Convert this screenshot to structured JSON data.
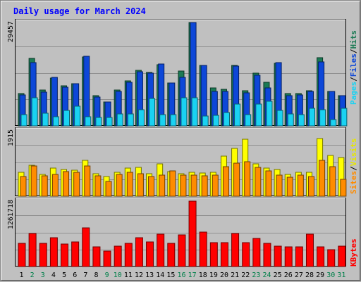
{
  "title": "Daily usage for March 2024",
  "chart_data": [
    {
      "type": "bar",
      "name": "hits-files-pages",
      "categories": [
        "1",
        "2",
        "3",
        "4",
        "5",
        "6",
        "7",
        "8",
        "9",
        "10",
        "11",
        "12",
        "13",
        "14",
        "15",
        "16",
        "17",
        "18",
        "19",
        "20",
        "21",
        "22",
        "23",
        "24",
        "25",
        "26",
        "27",
        "28",
        "29",
        "30",
        "31"
      ],
      "ymax_label": "29457",
      "ylim": [
        0,
        29457
      ],
      "series": [
        {
          "name": "Hits",
          "color": "#1b7a54",
          "values": [
            9240,
            19300,
            10160,
            13580,
            11400,
            12050,
            19680,
            8560,
            6900,
            10160,
            12800,
            15800,
            15200,
            17500,
            12300,
            15600,
            29457,
            17300,
            10800,
            10400,
            17300,
            10100,
            15100,
            12400,
            17800,
            9300,
            9300,
            10010,
            19400,
            9900,
            8700
          ]
        },
        {
          "name": "Files",
          "color": "#0d47d8",
          "values": [
            8900,
            18000,
            9600,
            13900,
            11000,
            12000,
            19900,
            8300,
            6800,
            9840,
            12400,
            15400,
            15000,
            17700,
            12200,
            13900,
            29457,
            17300,
            9900,
            9900,
            17100,
            9500,
            14400,
            10800,
            18000,
            8700,
            8800,
            9800,
            18300,
            9900,
            8600
          ]
        },
        {
          "name": "Pages",
          "color": "#1ad2f2",
          "values": [
            3200,
            8100,
            3600,
            2600,
            4400,
            5700,
            2700,
            2400,
            2400,
            3500,
            3500,
            4600,
            7800,
            3300,
            3200,
            8000,
            8000,
            2800,
            3000,
            3800,
            6300,
            3200,
            6200,
            7000,
            4400,
            3400,
            3200,
            5000,
            4700,
            1800,
            5100
          ]
        }
      ]
    },
    {
      "type": "bar",
      "name": "visits-sites",
      "categories": [
        "1",
        "2",
        "3",
        "4",
        "5",
        "6",
        "7",
        "8",
        "9",
        "10",
        "11",
        "12",
        "13",
        "14",
        "15",
        "16",
        "17",
        "18",
        "19",
        "20",
        "21",
        "22",
        "23",
        "24",
        "25",
        "26",
        "27",
        "28",
        "29",
        "30",
        "31"
      ],
      "ymax_label": "1915",
      "ylim": [
        0,
        1915
      ],
      "series": [
        {
          "name": "Visits",
          "color": "#ffff00",
          "values": [
            700,
            900,
            630,
            830,
            780,
            770,
            1040,
            660,
            580,
            700,
            830,
            850,
            660,
            950,
            730,
            660,
            690,
            680,
            700,
            1170,
            1400,
            1660,
            950,
            820,
            790,
            640,
            700,
            700,
            1690,
            1200,
            1140
          ]
        },
        {
          "name": "Sites",
          "color": "#ff8c00",
          "values": [
            570,
            880,
            600,
            630,
            720,
            710,
            880,
            600,
            440,
            630,
            690,
            650,
            570,
            620,
            740,
            620,
            620,
            600,
            620,
            870,
            970,
            1000,
            850,
            740,
            620,
            560,
            620,
            570,
            1050,
            870,
            500
          ]
        }
      ]
    },
    {
      "type": "bar",
      "name": "kbytes",
      "categories": [
        "1",
        "2",
        "3",
        "4",
        "5",
        "6",
        "7",
        "8",
        "9",
        "10",
        "11",
        "12",
        "13",
        "14",
        "15",
        "16",
        "17",
        "18",
        "19",
        "20",
        "21",
        "22",
        "23",
        "24",
        "25",
        "26",
        "27",
        "28",
        "29",
        "30",
        "31"
      ],
      "ymax_label": "1261718",
      "ylim": [
        0,
        1261718
      ],
      "series": [
        {
          "name": "KBytes",
          "color": "#ff0000",
          "values": [
            450000,
            640000,
            445000,
            550000,
            435000,
            480000,
            750000,
            375000,
            300000,
            400000,
            450000,
            550000,
            480000,
            630000,
            450000,
            605000,
            1261718,
            660000,
            455000,
            455000,
            640000,
            460000,
            545000,
            450000,
            390000,
            380000,
            375000,
            620000,
            380000,
            325000,
            390000
          ]
        }
      ]
    }
  ],
  "legend": {
    "top": [
      {
        "text": "Pages",
        "color": "#1ad2f2"
      },
      {
        "text": "/",
        "color": "#000000"
      },
      {
        "text": "Files",
        "color": "#0d47d8"
      },
      {
        "text": "/",
        "color": "#000000"
      },
      {
        "text": "Hits",
        "color": "#1b7a54"
      }
    ],
    "middle": [
      {
        "text": "Sites",
        "color": "#ff8c00"
      },
      {
        "text": "/",
        "color": "#000000"
      },
      {
        "text": "Visits",
        "color": "#e6e600"
      }
    ],
    "bottom": [
      {
        "text": "KBytes",
        "color": "#ff0000"
      }
    ]
  },
  "weekend_days": [
    2,
    3,
    9,
    10,
    16,
    17,
    23,
    24,
    30,
    31
  ],
  "colors": {
    "weekday": "#000000",
    "weekend": "#00804a",
    "plot_bg": "#c0c0c0",
    "grid": "#909090"
  }
}
